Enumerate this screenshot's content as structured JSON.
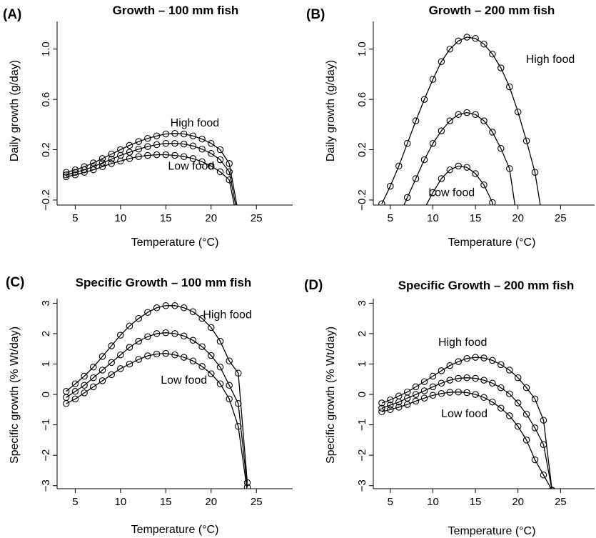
{
  "chart_data": [
    {
      "type": "line",
      "panel_label": "(A)",
      "title": "Growth – 100 mm fish",
      "xlabel": "Temperature (°C)",
      "ylabel": "Daily growth (g/day)",
      "xlim": [
        3,
        29
      ],
      "ylim": [
        -0.24,
        1.22
      ],
      "xticks": [
        "5",
        "10",
        "15",
        "20",
        "25"
      ],
      "xtick_values": [
        5,
        10,
        15,
        20,
        25
      ],
      "yticks": [
        "−0.2",
        "0.2",
        "0.6",
        "1.0"
      ],
      "ytick_values": [
        -0.2,
        0.2,
        0.6,
        1.0
      ],
      "grid": false,
      "legend": "none",
      "annotations": [
        {
          "text": "High food",
          "x": 18.2,
          "y": 0.385
        },
        {
          "text": "Low food",
          "x": 17.8,
          "y": 0.04
        }
      ],
      "series": [
        {
          "x": [
            4,
            5,
            6,
            7,
            8,
            9,
            10,
            11,
            12,
            13,
            14,
            15,
            16,
            17,
            18,
            19,
            20,
            21,
            22,
            23,
            24
          ],
          "y": [
            0.02,
            0.04,
            0.065,
            0.095,
            0.13,
            0.165,
            0.2,
            0.235,
            0.265,
            0.29,
            0.31,
            0.325,
            0.33,
            0.325,
            0.31,
            0.285,
            0.25,
            0.2,
            0.09,
            -0.3,
            -0.6
          ]
        },
        {
          "x": [
            4,
            5,
            6,
            7,
            8,
            9,
            10,
            11,
            12,
            13,
            14,
            15,
            16,
            17,
            18,
            19,
            20,
            21,
            22,
            23,
            24
          ],
          "y": [
            0.0,
            0.02,
            0.04,
            0.065,
            0.095,
            0.125,
            0.155,
            0.18,
            0.205,
            0.225,
            0.24,
            0.25,
            0.25,
            0.245,
            0.23,
            0.205,
            0.17,
            0.12,
            0.025,
            -0.35,
            -0.6
          ]
        },
        {
          "x": [
            4,
            5,
            6,
            7,
            8,
            9,
            10,
            11,
            12,
            13,
            14,
            15,
            16,
            17,
            18,
            19,
            20,
            21,
            22,
            23,
            24
          ],
          "y": [
            -0.015,
            0.0,
            0.02,
            0.04,
            0.065,
            0.09,
            0.11,
            0.13,
            0.145,
            0.155,
            0.16,
            0.16,
            0.155,
            0.145,
            0.13,
            0.105,
            0.07,
            0.025,
            -0.04,
            -0.4,
            -0.6
          ]
        }
      ]
    },
    {
      "type": "line",
      "panel_label": "(B)",
      "title": "Growth – 200 mm fish",
      "xlabel": "Temperature (°C)",
      "ylabel": "Daily growth (g/day)",
      "xlim": [
        3,
        29
      ],
      "ylim": [
        -0.24,
        1.22
      ],
      "xticks": [
        "5",
        "10",
        "15",
        "20",
        "25"
      ],
      "xtick_values": [
        5,
        10,
        15,
        20,
        25
      ],
      "yticks": [
        "−0.2",
        "0.2",
        "0.6",
        "1.0"
      ],
      "ytick_values": [
        -0.2,
        0.2,
        0.6,
        1.0
      ],
      "grid": false,
      "legend": "none",
      "annotations": [
        {
          "text": "High food",
          "x": 23.8,
          "y": 0.89
        },
        {
          "text": "Low food",
          "x": 12.2,
          "y": -0.17
        }
      ],
      "series": [
        {
          "x": [
            4,
            5,
            6,
            7,
            8,
            9,
            10,
            11,
            12,
            13,
            14,
            15,
            16,
            17,
            18,
            19,
            20,
            21,
            22,
            23
          ],
          "y": [
            -0.23,
            -0.09,
            0.07,
            0.25,
            0.43,
            0.6,
            0.76,
            0.9,
            1.0,
            1.065,
            1.095,
            1.085,
            1.04,
            0.96,
            0.85,
            0.7,
            0.5,
            0.27,
            0.02,
            -0.4
          ]
        },
        {
          "x": [
            5,
            6,
            7,
            8,
            9,
            10,
            11,
            12,
            13,
            14,
            15,
            16,
            17,
            18,
            19,
            20
          ],
          "y": [
            -0.5,
            -0.33,
            -0.18,
            -0.03,
            0.12,
            0.25,
            0.35,
            0.43,
            0.48,
            0.495,
            0.48,
            0.43,
            0.34,
            0.21,
            0.05,
            -0.4
          ]
        },
        {
          "x": [
            7,
            8,
            9,
            10,
            11,
            12,
            13,
            14,
            15,
            16,
            17,
            18
          ],
          "y": [
            -0.6,
            -0.42,
            -0.27,
            -0.14,
            -0.03,
            0.04,
            0.07,
            0.06,
            0.01,
            -0.08,
            -0.22,
            -0.6
          ]
        }
      ]
    },
    {
      "type": "line",
      "panel_label": "(C)",
      "title": "Specific Growth – 100 mm fish",
      "xlabel": "Temperature (°C)",
      "ylabel": "Specific growth (% Wt/day)",
      "xlim": [
        3,
        29
      ],
      "ylim": [
        -3.1,
        3.15
      ],
      "xticks": [
        "5",
        "10",
        "15",
        "20",
        "25"
      ],
      "xtick_values": [
        5,
        10,
        15,
        20,
        25
      ],
      "yticks": [
        "−3",
        "−2",
        "−1",
        "0",
        "1",
        "2",
        "3"
      ],
      "ytick_values": [
        -3,
        -2,
        -1,
        0,
        1,
        2,
        3
      ],
      "grid": false,
      "legend": "none",
      "annotations": [
        {
          "text": "High food",
          "x": 21.8,
          "y": 2.5
        },
        {
          "text": "Low food",
          "x": 17,
          "y": 0.35
        }
      ],
      "series": [
        {
          "x": [
            4,
            5,
            6,
            7,
            8,
            9,
            10,
            11,
            12,
            13,
            14,
            15,
            16,
            17,
            18,
            19,
            20,
            21,
            22,
            23,
            24
          ],
          "y": [
            0.1,
            0.35,
            0.6,
            0.9,
            1.25,
            1.6,
            1.95,
            2.25,
            2.5,
            2.7,
            2.85,
            2.92,
            2.92,
            2.85,
            2.72,
            2.5,
            2.2,
            1.75,
            1.1,
            0.7,
            -2.9
          ]
        },
        {
          "x": [
            4,
            5,
            6,
            7,
            8,
            9,
            10,
            11,
            12,
            13,
            14,
            15,
            16,
            17,
            18,
            19,
            20,
            21,
            22,
            23,
            24
          ],
          "y": [
            -0.1,
            0.1,
            0.3,
            0.55,
            0.8,
            1.05,
            1.3,
            1.55,
            1.75,
            1.9,
            2.0,
            2.03,
            2.0,
            1.92,
            1.78,
            1.57,
            1.28,
            0.9,
            0.3,
            -0.3,
            -3.05
          ]
        },
        {
          "x": [
            4,
            5,
            6,
            7,
            8,
            9,
            10,
            11,
            12,
            13,
            14,
            15,
            16,
            17,
            18,
            19,
            20,
            21,
            22,
            23,
            24
          ],
          "y": [
            -0.3,
            -0.15,
            0.05,
            0.25,
            0.45,
            0.65,
            0.85,
            1.0,
            1.15,
            1.27,
            1.33,
            1.35,
            1.3,
            1.22,
            1.1,
            0.92,
            0.68,
            0.35,
            -0.15,
            -1.05,
            -3.2
          ]
        }
      ]
    },
    {
      "type": "line",
      "panel_label": "(D)",
      "title": "Specific Growth – 200 mm fish",
      "xlabel": "Temperature (°C)",
      "ylabel": "Specific growth (% Wt/day)",
      "xlim": [
        3,
        29
      ],
      "ylim": [
        -3.1,
        3.15
      ],
      "xticks": [
        "5",
        "10",
        "15",
        "20",
        "25"
      ],
      "xtick_values": [
        5,
        10,
        15,
        20,
        25
      ],
      "yticks": [
        "−3",
        "−2",
        "−1",
        "0",
        "1",
        "2",
        "3"
      ],
      "ytick_values": [
        -3,
        -2,
        -1,
        0,
        1,
        2,
        3
      ],
      "grid": false,
      "legend": "none",
      "annotations": [
        {
          "text": "High food",
          "x": 13.5,
          "y": 1.6
        },
        {
          "text": "Low food",
          "x": 13.7,
          "y": -0.75
        }
      ],
      "series": [
        {
          "x": [
            4,
            5,
            6,
            7,
            8,
            9,
            10,
            11,
            12,
            13,
            14,
            15,
            16,
            17,
            18,
            19,
            20,
            21,
            22,
            23,
            24
          ],
          "y": [
            -0.28,
            -0.18,
            -0.05,
            0.08,
            0.25,
            0.42,
            0.6,
            0.78,
            0.95,
            1.08,
            1.18,
            1.22,
            1.2,
            1.12,
            0.98,
            0.8,
            0.55,
            0.22,
            -0.15,
            -0.85,
            -3.15
          ]
        },
        {
          "x": [
            4,
            5,
            6,
            7,
            8,
            9,
            10,
            11,
            12,
            13,
            14,
            15,
            16,
            17,
            18,
            19,
            20,
            21,
            22,
            23,
            24
          ],
          "y": [
            -0.45,
            -0.35,
            -0.25,
            -0.12,
            0.0,
            0.12,
            0.25,
            0.37,
            0.47,
            0.53,
            0.55,
            0.53,
            0.47,
            0.37,
            0.22,
            0.02,
            -0.28,
            -0.65,
            -1.1,
            -1.65,
            -3.15
          ]
        },
        {
          "x": [
            4,
            5,
            6,
            7,
            8,
            9,
            10,
            11,
            12,
            13,
            14,
            15,
            16,
            17,
            18,
            19,
            20,
            21,
            22,
            23,
            24
          ],
          "y": [
            -0.57,
            -0.5,
            -0.42,
            -0.33,
            -0.22,
            -0.12,
            -0.03,
            0.03,
            0.07,
            0.08,
            0.06,
            0.0,
            -0.1,
            -0.25,
            -0.45,
            -0.7,
            -1.05,
            -1.5,
            -2.15,
            -2.65,
            -3.15
          ]
        }
      ]
    }
  ]
}
